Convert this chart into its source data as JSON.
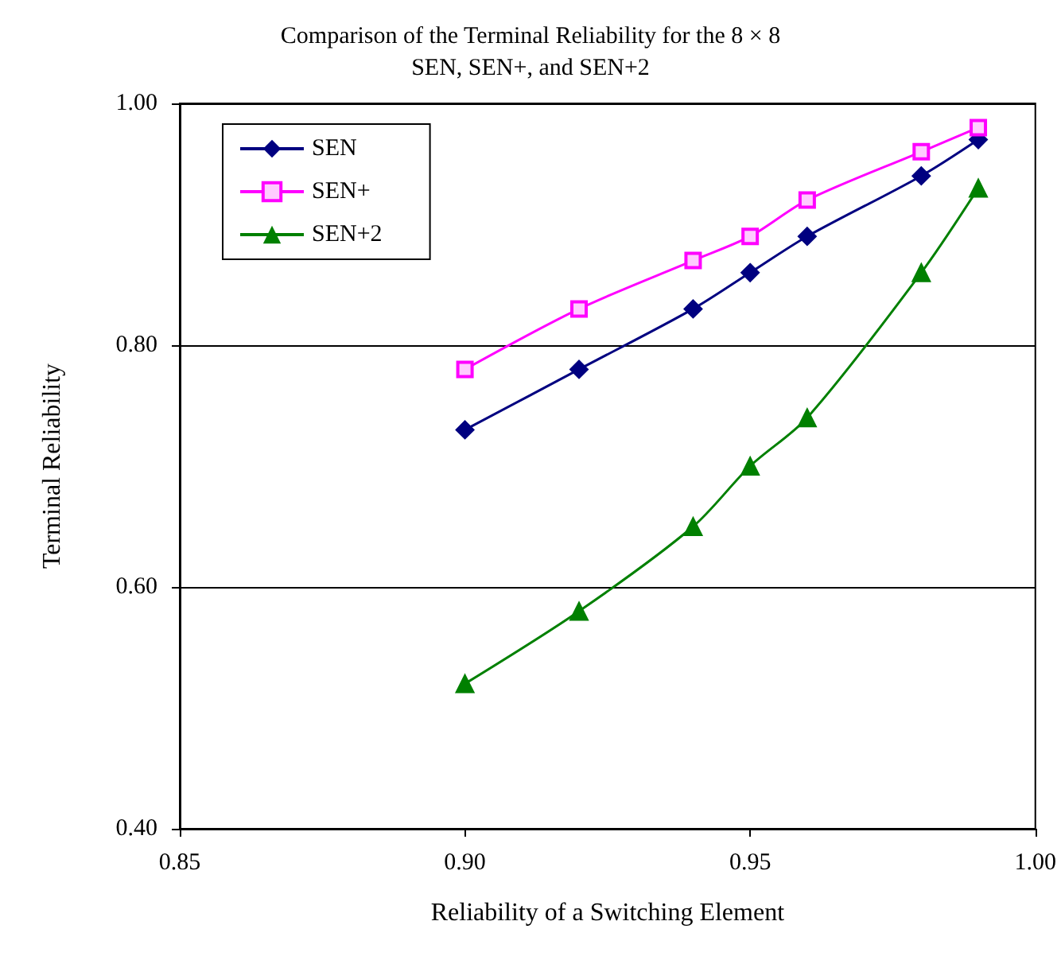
{
  "chart_data": {
    "type": "line",
    "title": "Comparison of the Terminal Reliability for the 8 × 8\nSEN, SEN+, and SEN+2",
    "xlabel": "Reliability of a Switching Element",
    "ylabel": "Terminal Reliability",
    "x": [
      0.9,
      0.92,
      0.94,
      0.95,
      0.96,
      0.98,
      0.99
    ],
    "series": [
      {
        "name": "SEN",
        "color": "#000080",
        "marker": "diamond",
        "values": [
          0.73,
          0.78,
          0.83,
          0.86,
          0.89,
          0.94,
          0.97
        ]
      },
      {
        "name": "SEN+",
        "color": "#ff00ff",
        "marker": "square",
        "values": [
          0.78,
          0.83,
          0.87,
          0.89,
          0.92,
          0.96,
          0.98
        ]
      },
      {
        "name": "SEN+2",
        "color": "#008000",
        "marker": "triangle",
        "values": [
          0.52,
          0.58,
          0.65,
          0.7,
          0.74,
          0.86,
          0.93
        ]
      }
    ],
    "xlim": [
      0.85,
      1.0
    ],
    "xticks": [
      {
        "value": 0.85,
        "label": "0.85"
      },
      {
        "value": 0.9,
        "label": "0.90"
      },
      {
        "value": 0.95,
        "label": "0.95"
      },
      {
        "value": 1.0,
        "label": "1.00"
      }
    ],
    "ylim": [
      0.4,
      1.0
    ],
    "yticks": [
      {
        "value": 0.4,
        "label": "0.40"
      },
      {
        "value": 0.6,
        "label": "0.60"
      },
      {
        "value": 0.8,
        "label": "0.80"
      },
      {
        "value": 1.0,
        "label": "1.00"
      }
    ],
    "grid": "y",
    "legend": "top left",
    "line_style": "solid"
  }
}
